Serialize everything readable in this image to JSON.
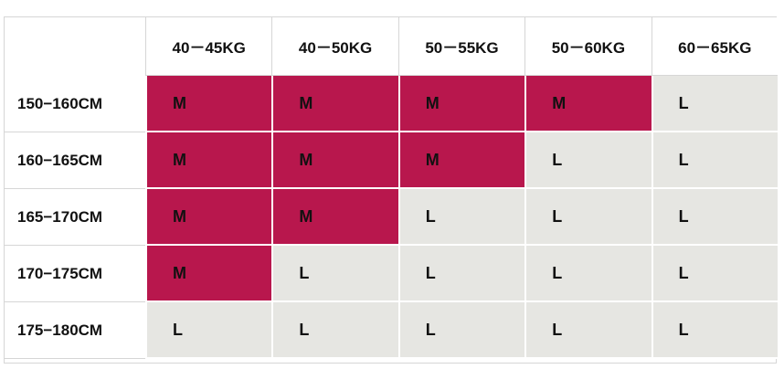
{
  "table": {
    "columns": [
      "40－45KG",
      "40－50KG",
      "50－55KG",
      "50－60KG",
      "60－65KG"
    ],
    "rows": [
      {
        "label": "150−160CM",
        "cells": [
          "M",
          "M",
          "M",
          "M",
          "L"
        ]
      },
      {
        "label": "160−165CM",
        "cells": [
          "M",
          "M",
          "M",
          "L",
          "L"
        ]
      },
      {
        "label": "165−170CM",
        "cells": [
          "M",
          "M",
          "L",
          "L",
          "L"
        ]
      },
      {
        "label": "170−175CM",
        "cells": [
          "M",
          "L",
          "L",
          "L",
          "L"
        ]
      },
      {
        "label": "175−180CM",
        "cells": [
          "L",
          "L",
          "L",
          "L",
          "L"
        ]
      }
    ],
    "cell_colors": {
      "M": "#b8174d",
      "L": "#e6e6e2"
    }
  }
}
